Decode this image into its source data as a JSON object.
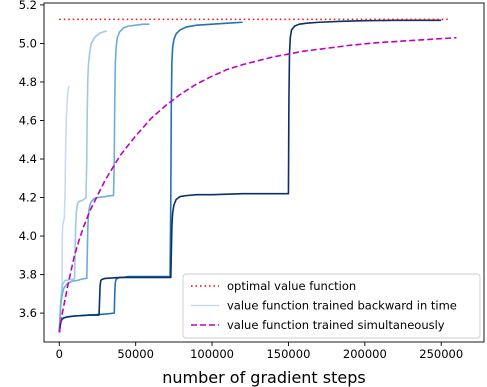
{
  "chart_data": {
    "type": "line",
    "title": "",
    "xlabel": "number of gradient steps",
    "ylabel": "",
    "xlim": [
      -10000,
      278000
    ],
    "ylim": [
      3.45,
      5.21
    ],
    "x_ticks": [
      0,
      50000,
      100000,
      150000,
      200000,
      250000
    ],
    "x_tick_labels": [
      "0",
      "50000",
      "100000",
      "150000",
      "200000",
      "250000"
    ],
    "y_ticks": [
      3.6,
      3.8,
      4.0,
      4.2,
      4.4,
      4.6,
      4.8,
      5.0,
      5.2
    ],
    "y_tick_labels": [
      "3.6",
      "3.8",
      "4.0",
      "4.2",
      "4.4",
      "4.6",
      "4.8",
      "5.0",
      "5.2"
    ],
    "grid": false,
    "legend_position": "lower-right",
    "legend": [
      {
        "label": "optimal value function",
        "style": "dotted",
        "color": "#ff0000"
      },
      {
        "label": "value function trained backward in time",
        "style": "solid",
        "color": "#c6dbef"
      },
      {
        "label": "value function trained simultaneously",
        "style": "dashed",
        "color": "#bf00bf"
      }
    ],
    "series": [
      {
        "style": "dotted",
        "color": "#ff0000",
        "x": [
          0,
          255000
        ],
        "y": [
          5.125,
          5.125
        ]
      },
      {
        "style": "solid",
        "color": "#c6dbef",
        "x": [
          0,
          200,
          500,
          900,
          1300,
          1600,
          1800,
          2000,
          2200,
          2500,
          2900,
          3300,
          3700,
          4000,
          4300,
          4600,
          5000,
          5400,
          5800,
          6200
        ],
        "y": [
          3.5,
          3.53,
          3.56,
          3.62,
          3.69,
          3.73,
          3.75,
          4.0,
          4.05,
          4.07,
          4.08,
          4.09,
          4.2,
          4.35,
          4.5,
          4.6,
          4.68,
          4.73,
          4.76,
          4.78
        ]
      },
      {
        "style": "solid",
        "color": "#9ecae1",
        "x": [
          0,
          300,
          600,
          1000,
          1500,
          2000,
          2500,
          3000,
          3500,
          3900,
          5000,
          7000,
          9000,
          10000,
          10300,
          10700,
          11200,
          12000,
          13000,
          15000,
          16000,
          17500,
          18000,
          18300,
          18700,
          19200,
          20000,
          21000,
          23000,
          25000,
          27000,
          29000,
          31000
        ],
        "y": [
          3.5,
          3.53,
          3.58,
          3.65,
          3.71,
          3.74,
          3.755,
          3.76,
          3.765,
          3.77,
          3.77,
          3.775,
          3.775,
          3.78,
          3.9,
          4.05,
          4.13,
          4.17,
          4.18,
          4.185,
          4.19,
          4.2,
          4.4,
          4.65,
          4.82,
          4.9,
          4.96,
          5.0,
          5.03,
          5.045,
          5.055,
          5.06,
          5.065
        ]
      },
      {
        "style": "solid",
        "color": "#6baed6",
        "x": [
          0,
          300,
          600,
          1000,
          2000,
          3000,
          5000,
          8000,
          12000,
          14000,
          17000,
          18000,
          18300,
          18700,
          19200,
          20000,
          21000,
          23000,
          25000,
          30000,
          34000,
          35500,
          36000,
          36300,
          36700,
          37200,
          38000,
          39500,
          42000,
          45000,
          50000,
          55000,
          59000
        ],
        "y": [
          3.5,
          3.55,
          3.6,
          3.65,
          3.7,
          3.73,
          3.75,
          3.765,
          3.77,
          3.775,
          3.78,
          3.78,
          3.9,
          4.05,
          4.12,
          4.16,
          4.18,
          4.195,
          4.2,
          4.205,
          4.21,
          4.21,
          4.4,
          4.7,
          4.9,
          4.98,
          5.03,
          5.06,
          5.08,
          5.09,
          5.095,
          5.1,
          5.1
        ]
      },
      {
        "style": "solid",
        "color": "#2171b5",
        "x": [
          0,
          300,
          700,
          1200,
          2000,
          3000,
          5000,
          10000,
          20000,
          30000,
          36000,
          36300,
          36700,
          37200,
          38000,
          39500,
          42000,
          45000,
          50000,
          60000,
          70000,
          72500,
          73000,
          73300,
          73700,
          74200,
          75000,
          76500,
          79000,
          83000,
          90000,
          100000,
          110000,
          120000
        ],
        "y": [
          3.5,
          3.52,
          3.54,
          3.56,
          3.57,
          3.575,
          3.58,
          3.585,
          3.59,
          3.595,
          3.6,
          3.7,
          3.76,
          3.775,
          3.78,
          3.785,
          3.785,
          3.79,
          3.79,
          3.79,
          3.79,
          3.79,
          4.2,
          4.65,
          4.9,
          4.98,
          5.02,
          5.05,
          5.07,
          5.085,
          5.095,
          5.1,
          5.105,
          5.11
        ]
      },
      {
        "style": "solid",
        "color": "#08306b",
        "x": [
          0,
          300,
          700,
          1200,
          2000,
          3000,
          5000,
          10000,
          20000,
          26000,
          26300,
          26700,
          27200,
          28000,
          30000,
          40000,
          60000,
          73000,
          73300,
          73700,
          74200,
          75000,
          76500,
          79000,
          83000,
          90000,
          100000,
          120000,
          140000,
          150000,
          150300,
          150700,
          151200,
          152000,
          154000,
          157000,
          162000,
          170000,
          185000,
          200000,
          220000,
          240000,
          250000
        ],
        "y": [
          3.5,
          3.52,
          3.54,
          3.56,
          3.57,
          3.575,
          3.58,
          3.585,
          3.59,
          3.59,
          3.65,
          3.74,
          3.77,
          3.775,
          3.78,
          3.785,
          3.785,
          3.785,
          3.9,
          4.05,
          4.12,
          4.16,
          4.19,
          4.205,
          4.21,
          4.215,
          4.215,
          4.22,
          4.22,
          4.22,
          4.7,
          4.95,
          5.03,
          5.07,
          5.09,
          5.1,
          5.105,
          5.11,
          5.115,
          5.118,
          5.12,
          5.12,
          5.12
        ]
      },
      {
        "style": "dashed",
        "color": "#bf00bf",
        "x": [
          0,
          1000,
          2000,
          4000,
          6000,
          8000,
          10000,
          13000,
          16000,
          20000,
          25000,
          30000,
          40000,
          50000,
          60000,
          70000,
          80000,
          90000,
          100000,
          110000,
          120000,
          130000,
          140000,
          150000,
          160000,
          170000,
          180000,
          190000,
          200000,
          210000,
          220000,
          230000,
          240000,
          250000,
          260000
        ],
        "y": [
          3.5,
          3.55,
          3.6,
          3.68,
          3.76,
          3.83,
          3.9,
          3.98,
          4.05,
          4.13,
          4.21,
          4.29,
          4.42,
          4.52,
          4.61,
          4.68,
          4.74,
          4.79,
          4.83,
          4.865,
          4.89,
          4.91,
          4.93,
          4.945,
          4.96,
          4.97,
          4.98,
          4.99,
          4.998,
          5.005,
          5.01,
          5.015,
          5.02,
          5.025,
          5.03
        ]
      }
    ]
  }
}
